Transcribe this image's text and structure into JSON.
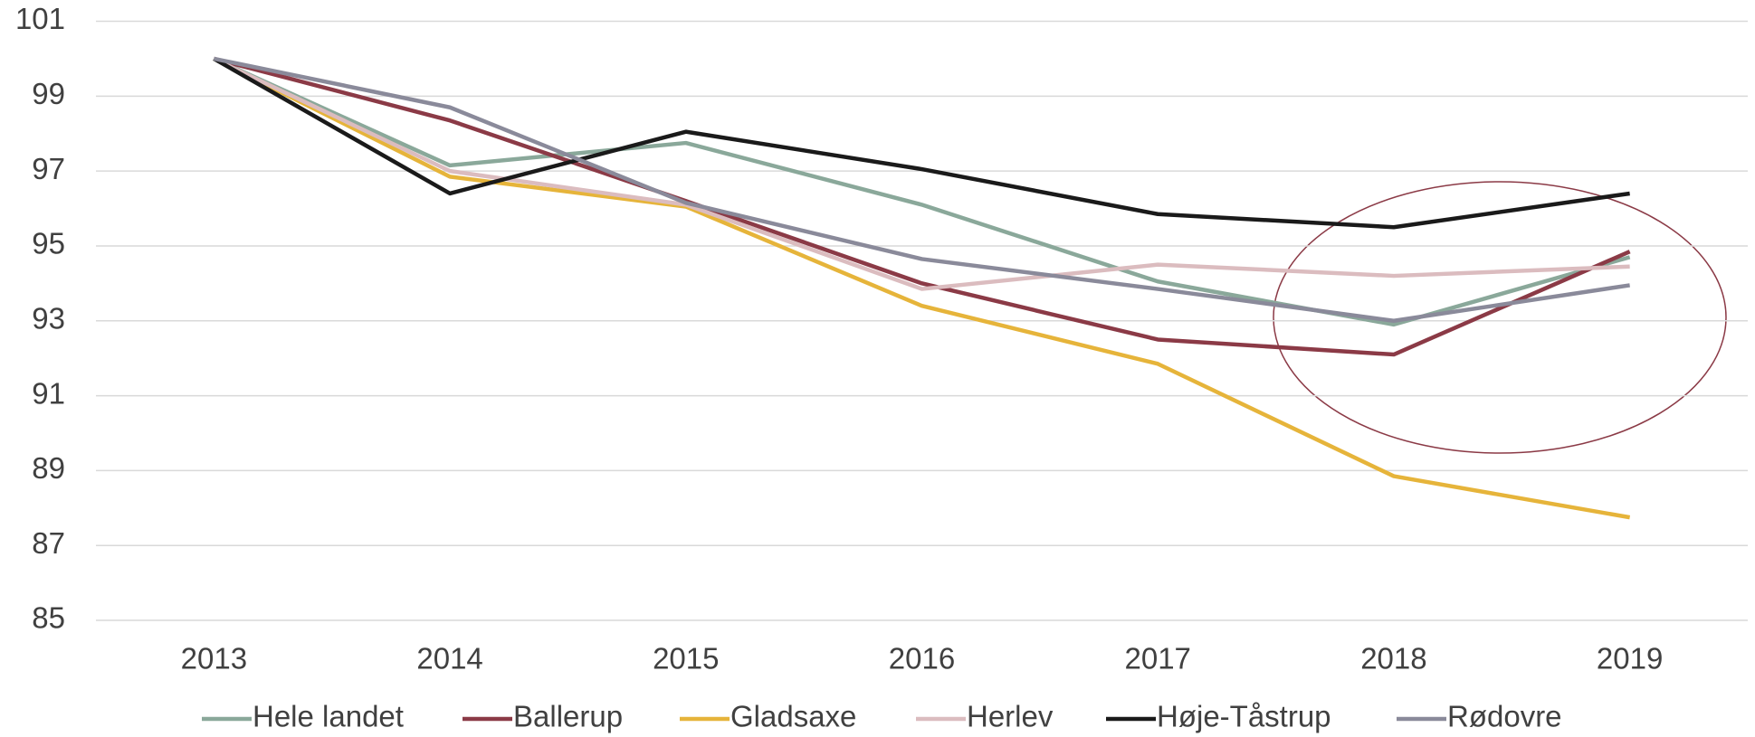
{
  "chart_data": {
    "type": "line",
    "categories": [
      "2013",
      "2014",
      "2015",
      "2016",
      "2017",
      "2018",
      "2019"
    ],
    "series": [
      {
        "name": "Hele landet",
        "color": "#8aa89a",
        "values": [
          100,
          97.15,
          97.75,
          96.1,
          94.05,
          92.9,
          94.7
        ]
      },
      {
        "name": "Ballerup",
        "color": "#8b3a46",
        "values": [
          100,
          98.35,
          96.2,
          94.0,
          92.5,
          92.1,
          94.85
        ]
      },
      {
        "name": "Gladsaxe",
        "color": "#e6b43a",
        "values": [
          100,
          96.85,
          96.05,
          93.4,
          91.85,
          88.85,
          87.75
        ]
      },
      {
        "name": "Herlev",
        "color": "#dbbcbf",
        "values": [
          100,
          97.0,
          96.1,
          93.85,
          94.5,
          94.2,
          94.45
        ]
      },
      {
        "name": "Høje-Tåstrup",
        "color": "#1a1a1a",
        "values": [
          100,
          96.4,
          98.05,
          97.05,
          95.85,
          95.5,
          96.4
        ]
      },
      {
        "name": "Rødovre",
        "color": "#8a8a9a",
        "values": [
          100,
          98.7,
          96.15,
          94.65,
          93.85,
          93.0,
          93.95
        ]
      }
    ],
    "ylim": [
      85,
      101
    ],
    "yticks": [
      85,
      87,
      89,
      91,
      93,
      95,
      97,
      99,
      101
    ],
    "grid": true,
    "legend": "bottom"
  }
}
